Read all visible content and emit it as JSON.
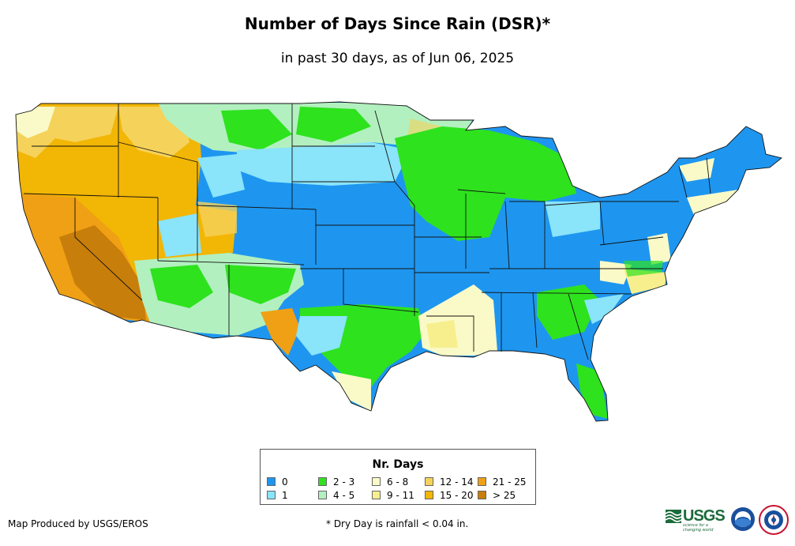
{
  "title": "Number of Days Since Rain (DSR)*",
  "subtitle": "in past 30 days, as of Jun 06, 2025",
  "legend": {
    "title": "Nr. Days",
    "items": [
      {
        "label": "0",
        "color": "#1e96f0"
      },
      {
        "label": "1",
        "color": "#8ae4fa"
      },
      {
        "label": "2 - 3",
        "color": "#2ee21e"
      },
      {
        "label": "4 - 5",
        "color": "#b2f0c0"
      },
      {
        "label": "6 - 8",
        "color": "#fafac8"
      },
      {
        "label": "9 - 11",
        "color": "#f7ef8e"
      },
      {
        "label": "12 - 14",
        "color": "#f5d25a"
      },
      {
        "label": "15 - 20",
        "color": "#f2b605"
      },
      {
        "label": "21 - 25",
        "color": "#f0a014"
      },
      {
        "label": "> 25",
        "color": "#c87e0a"
      }
    ]
  },
  "footer": {
    "producer": "Map Produced by USGS/EROS",
    "note": "* Dry Day is rainfall < 0.04 in."
  },
  "logos": {
    "usgs_word": "USGS",
    "usgs_tagline": "science for a changing world"
  }
}
